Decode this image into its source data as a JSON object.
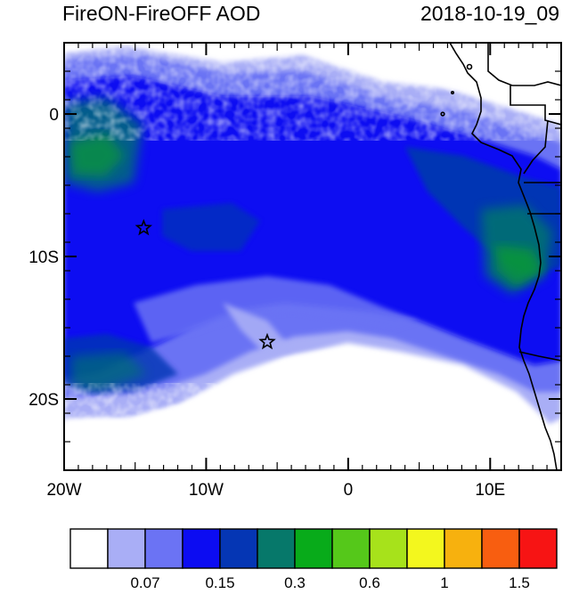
{
  "title": "FireON-FireOFF AOD",
  "timestamp": "2018-10-19_09",
  "map": {
    "lon_range": [
      -20,
      15
    ],
    "lat_range": [
      -25,
      5
    ],
    "x_ticks": [
      {
        "value": -20,
        "label": "20W"
      },
      {
        "value": -10,
        "label": "10W"
      },
      {
        "value": 0,
        "label": "0"
      },
      {
        "value": 10,
        "label": "10E"
      }
    ],
    "y_ticks": [
      {
        "value": 0,
        "label": "0"
      },
      {
        "value": -10,
        "label": "10S"
      },
      {
        "value": -20,
        "label": "20S"
      }
    ],
    "markers": [
      {
        "lon": -14.4,
        "lat": -8.0,
        "symbol": "star"
      },
      {
        "lon": -5.7,
        "lat": -16.0,
        "symbol": "star"
      }
    ]
  },
  "colorbar": {
    "colors": [
      "#ffffff",
      "#a9aef6",
      "#6b73f4",
      "#0c0cf2",
      "#0536b4",
      "#06786a",
      "#08ab1a",
      "#55c81a",
      "#a7e21b",
      "#f3f71e",
      "#f7b10e",
      "#f85e10",
      "#f71414"
    ],
    "labels": [
      {
        "boundary": 2,
        "text": "0.07"
      },
      {
        "boundary": 4,
        "text": "0.15"
      },
      {
        "boundary": 6,
        "text": "0.3"
      },
      {
        "boundary": 8,
        "text": "0.6"
      },
      {
        "boundary": 10,
        "text": "1"
      },
      {
        "boundary": 12,
        "text": "1.5"
      }
    ]
  }
}
